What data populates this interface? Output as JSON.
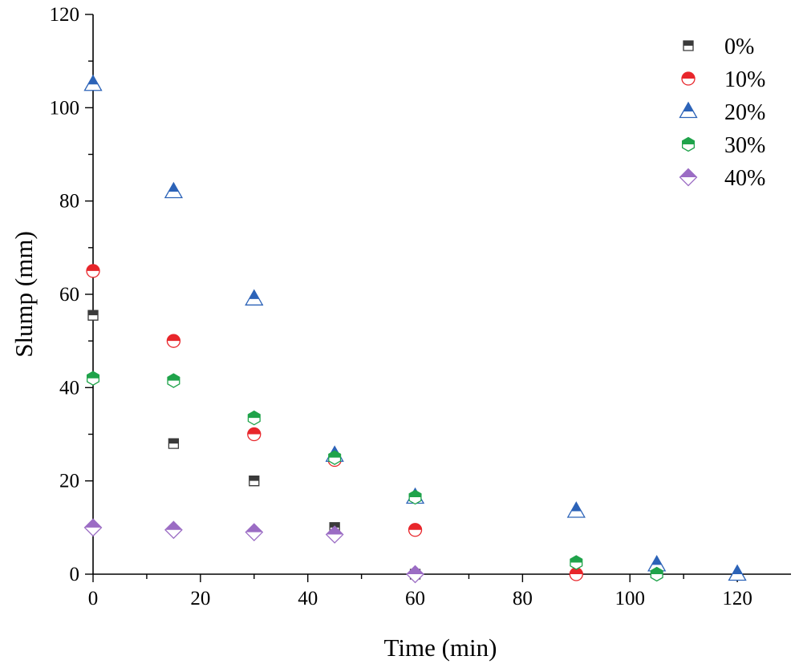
{
  "chart_data": {
    "type": "scatter",
    "title": "",
    "xlabel": "Time (min)",
    "ylabel": "Slump (mm)",
    "xlim": [
      0,
      130
    ],
    "ylim": [
      0,
      120
    ],
    "xticks": [
      0,
      20,
      40,
      60,
      80,
      100,
      120
    ],
    "yticks": [
      0,
      20,
      40,
      60,
      80,
      100,
      120
    ],
    "x_tick_labels": [
      "0",
      "20",
      "40",
      "60",
      "80",
      "100",
      "120"
    ],
    "y_tick_labels": [
      "0",
      "20",
      "40",
      "60",
      "80",
      "100",
      "120"
    ],
    "legend_position": "top-right",
    "series": [
      {
        "name": "0%",
        "marker": "square",
        "color": "#3a3a3a",
        "x": [
          0,
          15,
          30,
          45,
          60
        ],
        "y": [
          55.5,
          28,
          20,
          10,
          0
        ]
      },
      {
        "name": "10%",
        "marker": "circle",
        "color": "#e8262b",
        "x": [
          0,
          15,
          30,
          45,
          60,
          90
        ],
        "y": [
          65,
          50,
          30,
          24.5,
          9.5,
          0
        ]
      },
      {
        "name": "20%",
        "marker": "triangle",
        "color": "#2c63b8",
        "x": [
          0,
          15,
          30,
          45,
          60,
          90,
          105,
          120
        ],
        "y": [
          105,
          82,
          59,
          25.5,
          16.5,
          13.5,
          2,
          0
        ]
      },
      {
        "name": "30%",
        "marker": "hexagon",
        "color": "#1fa34a",
        "x": [
          0,
          15,
          30,
          45,
          60,
          90,
          105
        ],
        "y": [
          42,
          41.5,
          33.5,
          25,
          16.5,
          2.5,
          0
        ]
      },
      {
        "name": "40%",
        "marker": "diamond",
        "color": "#9b6cc4",
        "x": [
          0,
          15,
          30,
          45,
          60
        ],
        "y": [
          10,
          9.5,
          9,
          8.5,
          0
        ]
      }
    ]
  }
}
